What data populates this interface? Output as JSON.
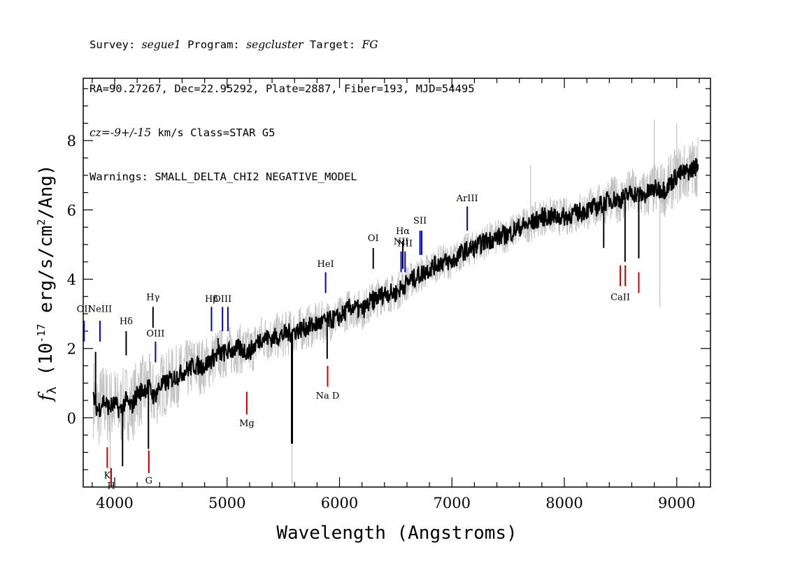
{
  "header": {
    "line1": {
      "survey_label": "Survey:",
      "survey": "segue1",
      "program_label": "Program:",
      "program": "segcluster",
      "target_label": "Target:",
      "target": "FG"
    },
    "line2": "RA=90.27267, Dec=22.95292, Plate=2887, Fiber=193, MJD=54495",
    "line3": {
      "cz": "cz=-9+/-15",
      "rest": " km/s Class=STAR G5"
    },
    "line4": "Warnings: SMALL_DELTA_CHI2 NEGATIVE_MODEL"
  },
  "chart_data": {
    "type": "line",
    "xlabel": "Wavelength (Angstroms)",
    "ylabel": "f_λ (10^-17 erg/s/cm^2/Ang)",
    "xlim": [
      3720,
      9300
    ],
    "ylim": [
      -2.0,
      9.8
    ],
    "xticks": [
      4000,
      5000,
      6000,
      7000,
      8000,
      9000
    ],
    "yticks": [
      0,
      2,
      4,
      6,
      8
    ],
    "grid": false,
    "series": [
      {
        "role": "model",
        "color": "#000000",
        "points": [
          [
            3810,
            0.6
          ],
          [
            3850,
            0.2
          ],
          [
            3900,
            0.5
          ],
          [
            3950,
            0.3
          ],
          [
            4000,
            0.4
          ],
          [
            4050,
            0.2
          ],
          [
            4100,
            0.5
          ],
          [
            4150,
            0.3
          ],
          [
            4200,
            0.7
          ],
          [
            4250,
            0.8
          ],
          [
            4300,
            0.9
          ],
          [
            4350,
            0.6
          ],
          [
            4400,
            0.9
          ],
          [
            4500,
            1.1
          ],
          [
            4600,
            1.3
          ],
          [
            4700,
            1.5
          ],
          [
            4800,
            1.5
          ],
          [
            4900,
            1.8
          ],
          [
            5000,
            1.9
          ],
          [
            5100,
            2.0
          ],
          [
            5200,
            1.9
          ],
          [
            5300,
            2.3
          ],
          [
            5400,
            2.3
          ],
          [
            5500,
            2.4
          ],
          [
            5600,
            2.5
          ],
          [
            5700,
            2.6
          ],
          [
            5800,
            2.7
          ],
          [
            5900,
            2.8
          ],
          [
            6000,
            2.9
          ],
          [
            6100,
            3.2
          ],
          [
            6200,
            3.1
          ],
          [
            6300,
            3.4
          ],
          [
            6400,
            3.6
          ],
          [
            6500,
            3.6
          ],
          [
            6600,
            3.9
          ],
          [
            6700,
            4.1
          ],
          [
            6800,
            4.3
          ],
          [
            6900,
            4.5
          ],
          [
            7000,
            4.5
          ],
          [
            7100,
            4.8
          ],
          [
            7200,
            4.9
          ],
          [
            7300,
            5.1
          ],
          [
            7400,
            5.2
          ],
          [
            7500,
            5.3
          ],
          [
            7600,
            5.5
          ],
          [
            7700,
            5.6
          ],
          [
            7800,
            5.8
          ],
          [
            7900,
            5.8
          ],
          [
            8000,
            5.8
          ],
          [
            8100,
            5.9
          ],
          [
            8200,
            6.0
          ],
          [
            8300,
            6.1
          ],
          [
            8400,
            6.3
          ],
          [
            8500,
            6.3
          ],
          [
            8600,
            6.5
          ],
          [
            8700,
            6.4
          ],
          [
            8800,
            6.6
          ],
          [
            8900,
            6.6
          ],
          [
            9000,
            7.0
          ],
          [
            9100,
            7.1
          ],
          [
            9190,
            7.3
          ]
        ],
        "spikes": [
          [
            3830,
            1.9
          ],
          [
            4070,
            -1.4
          ],
          [
            4300,
            -0.9
          ],
          [
            4920,
            2.3
          ],
          [
            5577,
            -0.75
          ],
          [
            5890,
            1.7
          ],
          [
            6300,
            3.1
          ],
          [
            8350,
            4.9
          ],
          [
            8540,
            4.5
          ],
          [
            8662,
            4.6
          ]
        ]
      },
      {
        "role": "flux",
        "color": "#c0c0c0",
        "noise_amplitude": [
          [
            3810,
            1.2
          ],
          [
            5000,
            0.75
          ],
          [
            6000,
            0.6
          ],
          [
            7000,
            0.5
          ],
          [
            8000,
            0.55
          ],
          [
            9190,
            0.9
          ]
        ],
        "spikes": [
          [
            3960,
            -1.9
          ],
          [
            4300,
            -1.5
          ],
          [
            5577,
            -1.9
          ],
          [
            7700,
            7.3
          ],
          [
            8800,
            8.6
          ],
          [
            8850,
            3.2
          ],
          [
            9000,
            8.5
          ]
        ]
      }
    ],
    "emission_lines": [
      {
        "label": "OII",
        "wave": 3727,
        "flux": [
          2.2,
          2.8
        ],
        "label_y": 3.05,
        "color": "#0000cc"
      },
      {
        "label": "NeIII",
        "wave": 3869,
        "flux": [
          2.2,
          2.8
        ],
        "label_y": 3.05,
        "color": "#0000cc"
      },
      {
        "label": "Hδ",
        "wave": 4102,
        "flux": [
          1.8,
          2.5
        ],
        "label_y": 2.7,
        "color": "#000000"
      },
      {
        "label": "Hγ",
        "wave": 4341,
        "flux": [
          2.6,
          3.2
        ],
        "label_y": 3.4,
        "color": "#000000"
      },
      {
        "label": "OIII",
        "wave": 4363,
        "flux": [
          1.6,
          2.2
        ],
        "label_y": 2.35,
        "color": "#0000cc"
      },
      {
        "label": "Hβ",
        "wave": 4861,
        "flux": [
          2.5,
          3.2
        ],
        "label_y": 3.35,
        "color": "#0000cc"
      },
      {
        "label": "OIII",
        "wave": 4959,
        "flux": [
          2.5,
          3.2
        ],
        "label_y": 3.35,
        "color": "#0000cc"
      },
      {
        "label": "",
        "wave": 5007,
        "flux": [
          2.5,
          3.2
        ],
        "label_y": 3.35,
        "color": "#0000cc"
      },
      {
        "label": "HeI",
        "wave": 5876,
        "flux": [
          3.6,
          4.2
        ],
        "label_y": 4.35,
        "color": "#0000cc"
      },
      {
        "label": "OI",
        "wave": 6300,
        "flux": [
          4.3,
          4.9
        ],
        "label_y": 5.1,
        "color": "#000000"
      },
      {
        "label": "NII",
        "wave": 6548,
        "flux": [
          4.2,
          4.8
        ],
        "label_y": 5.0,
        "color": "#0000cc"
      },
      {
        "label": "Hα",
        "wave": 6563,
        "flux": [
          4.3,
          5.1
        ],
        "label_y": 5.3,
        "color": "#000000"
      },
      {
        "label": "NII",
        "wave": 6583,
        "flux": [
          4.2,
          4.8
        ],
        "label_y": 4.95,
        "color": "#0000cc"
      },
      {
        "label": "SII",
        "wave": 6716,
        "flux": [
          4.7,
          5.4
        ],
        "label_y": 5.6,
        "color": "#0000cc"
      },
      {
        "label": "",
        "wave": 6731,
        "flux": [
          4.7,
          5.4
        ],
        "label_y": 5.6,
        "color": "#0000cc"
      },
      {
        "label": "ArIII",
        "wave": 7136,
        "flux": [
          5.4,
          6.1
        ],
        "label_y": 6.25,
        "color": "#0000cc"
      }
    ],
    "absorption_lines": [
      {
        "label": "K",
        "wave": 3934,
        "flux": [
          -1.45,
          -0.85
        ],
        "label_y": -1.75,
        "color": "#cc0000"
      },
      {
        "label": "H",
        "wave": 3969,
        "flux": [
          -2.0,
          -1.45
        ],
        "label_y": -2.05,
        "color": "#cc0000"
      },
      {
        "label": "G",
        "wave": 4304,
        "flux": [
          -1.6,
          -0.95
        ],
        "label_y": -1.9,
        "color": "#cc0000"
      },
      {
        "label": "Mg",
        "wave": 5175,
        "flux": [
          0.1,
          0.75
        ],
        "label_y": -0.25,
        "color": "#cc0000"
      },
      {
        "label": "Na D",
        "wave": 5894,
        "flux": [
          0.9,
          1.5
        ],
        "label_y": 0.55,
        "color": "#cc0000"
      },
      {
        "label": "CaII",
        "wave": 8498,
        "flux": [
          3.8,
          4.4
        ],
        "label_y": 3.4,
        "color": "#cc0000"
      },
      {
        "label": "",
        "wave": 8542,
        "flux": [
          3.8,
          4.4
        ],
        "label_y": 3.4,
        "color": "#cc0000"
      },
      {
        "label": "",
        "wave": 8662,
        "flux": [
          3.6,
          4.2
        ],
        "label_y": 3.4,
        "color": "#cc0000"
      }
    ]
  }
}
